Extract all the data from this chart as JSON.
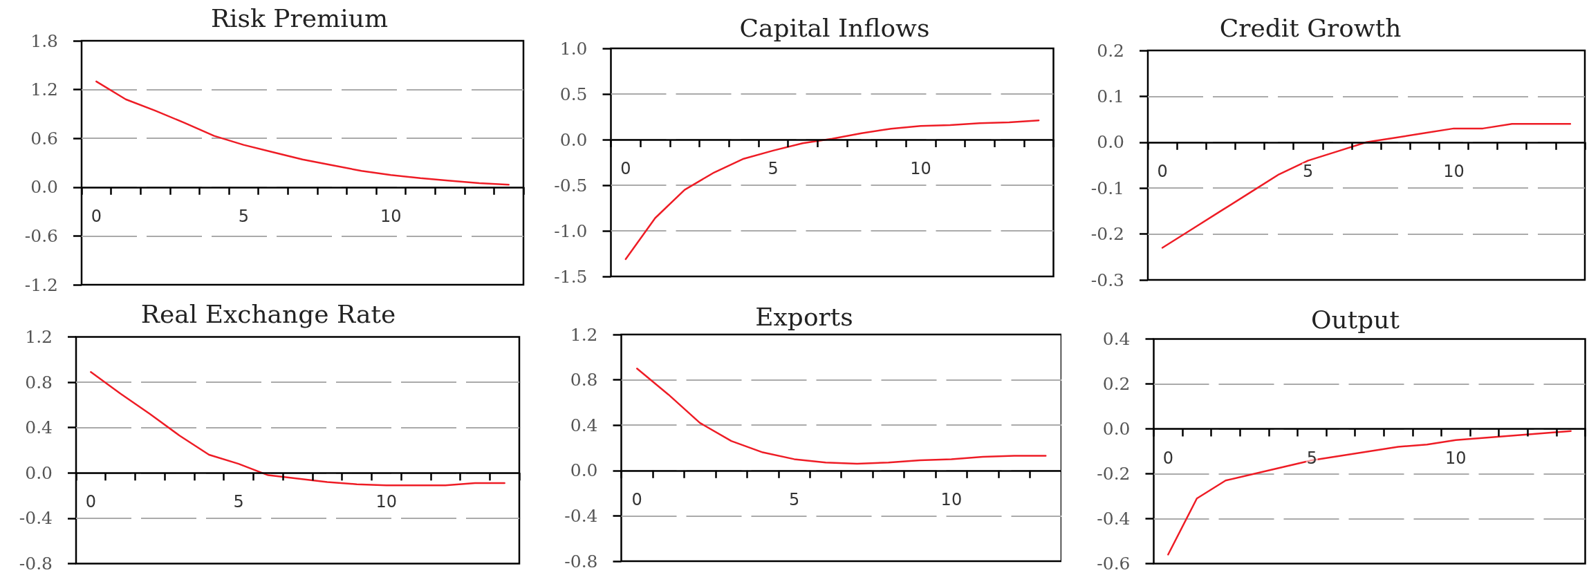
{
  "chart_data": [
    {
      "type": "line",
      "title": "Risk Premium",
      "categories": [
        "0",
        null,
        null,
        null,
        null,
        "5",
        null,
        null,
        null,
        null,
        "10",
        null,
        null,
        null,
        null
      ],
      "values": [
        1.3,
        1.08,
        0.94,
        0.79,
        0.63,
        0.52,
        0.43,
        0.34,
        0.27,
        0.2,
        0.15,
        0.11,
        0.08,
        0.05,
        0.03
      ],
      "color": "#ee1c25",
      "ylim": [
        -1.2,
        1.8
      ],
      "yticks": [
        -1.2,
        -0.6,
        {
          "value": 0,
          "label": "0.0"
        },
        0.6,
        1.2,
        1.8
      ],
      "grid": "y",
      "marker": "none"
    },
    {
      "type": "line",
      "title": "Capital Inflows",
      "categories": [
        "0",
        null,
        null,
        null,
        null,
        "5",
        null,
        null,
        null,
        null,
        "10",
        null,
        null,
        null,
        null
      ],
      "values": [
        -1.31,
        -0.86,
        -0.55,
        -0.36,
        -0.21,
        -0.12,
        -0.04,
        0.01,
        0.07,
        0.12,
        0.15,
        0.16,
        0.18,
        0.19,
        0.21
      ],
      "color": "#ee1c25",
      "ylim": [
        -1.5,
        1.0
      ],
      "yticks": [
        -1.5,
        {
          "value": -1,
          "label": "-1.0"
        },
        -0.5,
        {
          "value": 0,
          "label": "0.0"
        },
        0.5,
        {
          "value": 1,
          "label": "1.0"
        }
      ],
      "grid": "y",
      "marker": "none"
    },
    {
      "type": "line",
      "title": "Credit Growth",
      "categories": [
        "0",
        null,
        null,
        null,
        null,
        "5",
        null,
        null,
        null,
        null,
        "10",
        null,
        null,
        null,
        null
      ],
      "values": [
        -0.23,
        -0.19,
        -0.15,
        -0.11,
        -0.07,
        -0.04,
        -0.02,
        0.0,
        0.01,
        0.02,
        0.03,
        0.03,
        0.04,
        0.04,
        0.04
      ],
      "color": "#ee1c25",
      "ylim": [
        -0.3,
        0.2
      ],
      "yticks": [
        -0.3,
        -0.2,
        -0.1,
        {
          "value": 0,
          "label": "0.0"
        },
        0.1,
        0.2
      ],
      "grid": "y",
      "marker": "none"
    },
    {
      "type": "line",
      "title": "Real Exchange Rate",
      "categories": [
        "0",
        null,
        null,
        null,
        null,
        "5",
        null,
        null,
        null,
        null,
        "10",
        null,
        null,
        null,
        null
      ],
      "values": [
        0.89,
        0.7,
        0.52,
        0.33,
        0.16,
        0.08,
        -0.02,
        -0.05,
        -0.08,
        -0.1,
        -0.11,
        -0.11,
        -0.11,
        -0.09,
        -0.09
      ],
      "color": "#ee1c25",
      "ylim": [
        -0.8,
        1.2
      ],
      "yticks": [
        -0.8,
        -0.4,
        {
          "value": 0,
          "label": "0.0"
        },
        0.4,
        0.8,
        1.2
      ],
      "grid": "y",
      "marker": "none"
    },
    {
      "type": "line",
      "title": "Exports",
      "categories": [
        "0",
        null,
        null,
        null,
        null,
        "5",
        null,
        null,
        null,
        null,
        "10",
        null,
        null,
        null
      ],
      "values": [
        0.9,
        0.67,
        0.42,
        0.26,
        0.16,
        0.1,
        0.07,
        0.06,
        0.07,
        0.09,
        0.1,
        0.12,
        0.13,
        0.13
      ],
      "color": "#ee1c25",
      "ylim": [
        -0.8,
        1.2
      ],
      "yticks": [
        -0.8,
        -0.4,
        {
          "value": 0,
          "label": "0.0"
        },
        0.4,
        0.8,
        1.2
      ],
      "grid": "y",
      "marker": "none"
    },
    {
      "type": "line",
      "title": "Output",
      "categories": [
        "0",
        null,
        null,
        null,
        null,
        "5",
        null,
        null,
        null,
        null,
        "10",
        null,
        null,
        null,
        null
      ],
      "values": [
        -0.56,
        -0.31,
        -0.23,
        -0.2,
        -0.17,
        -0.14,
        -0.12,
        -0.1,
        -0.08,
        -0.07,
        -0.05,
        -0.04,
        -0.03,
        -0.02,
        -0.01
      ],
      "color": "#ee1c25",
      "ylim": [
        -0.6,
        0.4
      ],
      "yticks": [
        -0.6,
        -0.4,
        -0.2,
        {
          "value": 0,
          "label": "0.0"
        },
        0.2,
        0.4
      ],
      "grid": "y",
      "marker": "none"
    }
  ]
}
